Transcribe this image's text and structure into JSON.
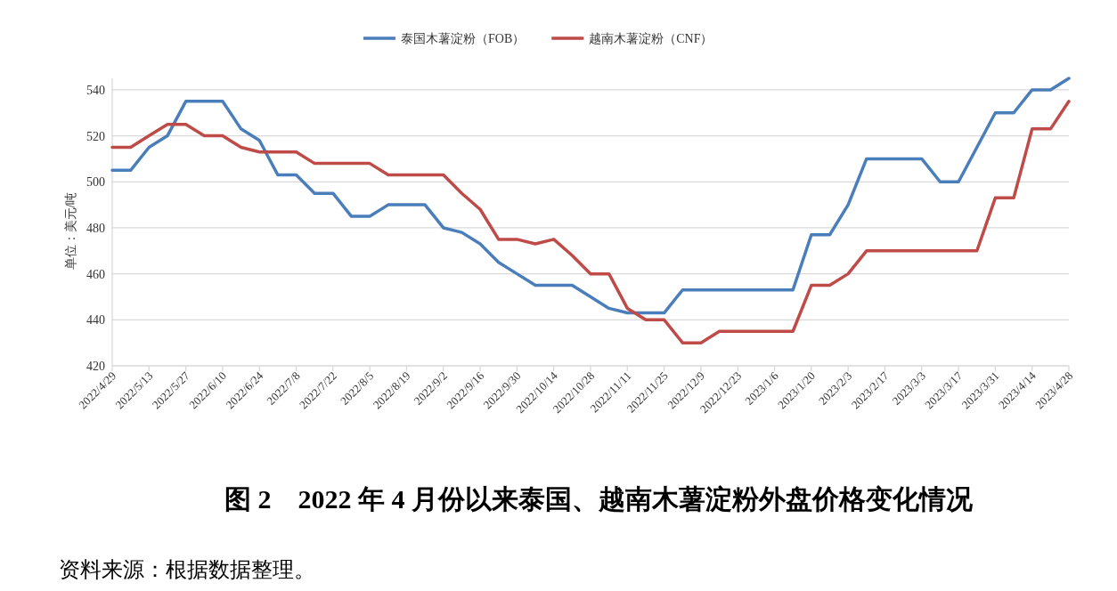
{
  "chart_data": {
    "type": "line",
    "title": "图 2　2022 年 4 月份以来泰国、越南木薯淀粉外盘价格变化情况",
    "ylabel": "单位：美元/吨",
    "categories": [
      "2022/4/29",
      null,
      "2022/5/13",
      null,
      "2022/5/27",
      null,
      "2022/6/10",
      null,
      "2022/6/24",
      null,
      "2022/7/8",
      null,
      "2022/7/22",
      null,
      "2022/8/5",
      null,
      "2022/8/19",
      null,
      "2022/9/2",
      null,
      "2022/9/16",
      null,
      "2022/9/30",
      null,
      "2022/10/14",
      null,
      "2022/10/28",
      null,
      "2022/11/11",
      null,
      "2022/11/25",
      null,
      "2022/12/9",
      null,
      "2022/12/23",
      null,
      "2023/1/6",
      null,
      "2023/1/20",
      null,
      "2023/2/3",
      null,
      "2023/2/17",
      null,
      "2023/3/3",
      null,
      "2023/3/17",
      null,
      "2023/3/31",
      null,
      "2023/4/14",
      null,
      "2023/4/28"
    ],
    "series": [
      {
        "name": "泰国木薯淀粉（FOB）",
        "color": "#4a7ebb",
        "values": [
          505,
          505,
          515,
          520,
          535,
          535,
          535,
          523,
          518,
          503,
          503,
          495,
          495,
          485,
          485,
          490,
          490,
          490,
          480,
          478,
          473,
          465,
          460,
          455,
          455,
          455,
          450,
          445,
          443,
          443,
          443,
          453,
          453,
          453,
          453,
          453,
          453,
          453,
          477,
          477,
          490,
          510,
          510,
          510,
          510,
          500,
          500,
          515,
          530,
          530,
          540,
          540,
          545
        ]
      },
      {
        "name": "越南木薯淀粉（CNF）",
        "color": "#be4b48",
        "values": [
          515,
          515,
          520,
          525,
          525,
          520,
          520,
          515,
          513,
          513,
          513,
          508,
          508,
          508,
          508,
          503,
          503,
          503,
          503,
          495,
          488,
          475,
          475,
          473,
          475,
          468,
          460,
          460,
          445,
          440,
          440,
          430,
          430,
          435,
          435,
          435,
          435,
          435,
          455,
          455,
          460,
          470,
          470,
          470,
          470,
          470,
          470,
          470,
          493,
          493,
          523,
          523,
          535
        ]
      }
    ],
    "ylim": [
      420,
      545
    ],
    "yticks": [
      420,
      440,
      460,
      480,
      500,
      520,
      540
    ],
    "grid": "y",
    "legend": "top",
    "marker": "none",
    "line_style": "solid",
    "annotations": [
      "资料来源：根据数据整理。"
    ]
  }
}
